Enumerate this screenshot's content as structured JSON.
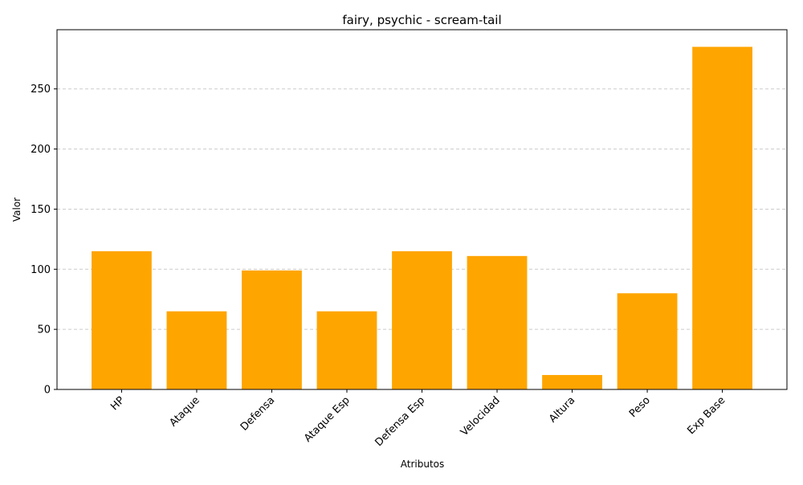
{
  "chart_data": {
    "type": "bar",
    "title": "fairy, psychic - scream-tail",
    "xlabel": "Atributos",
    "ylabel": "Valor",
    "categories": [
      "HP",
      "Ataque",
      "Defensa",
      "Ataque Esp",
      "Defensa Esp",
      "Velocidad",
      "Altura",
      "Peso",
      "Exp Base"
    ],
    "values": [
      115,
      65,
      99,
      65,
      115,
      111,
      12,
      80,
      285
    ],
    "ylim": [
      0,
      299.25
    ],
    "yticks": [
      0,
      50,
      100,
      150,
      200,
      250
    ],
    "grid": "y-dashed",
    "bar_color": "#ffa500",
    "tick_label_rotation": 45
  }
}
